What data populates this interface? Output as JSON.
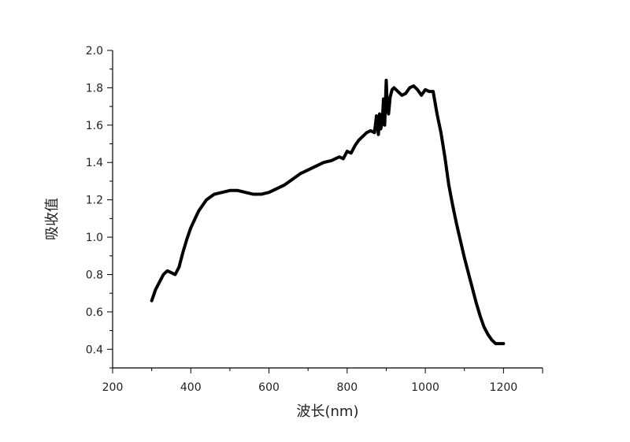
{
  "chart_data": {
    "type": "line",
    "xlabel": "波长(nm)",
    "ylabel": "吸收值",
    "xlim": [
      200,
      1300
    ],
    "ylim": [
      0.3,
      2.0
    ],
    "xticks": [
      200,
      400,
      600,
      800,
      1000,
      1200
    ],
    "yticks": [
      0.4,
      0.6,
      0.8,
      1.0,
      1.2,
      1.4,
      1.6,
      1.8,
      2.0
    ],
    "xtick_labels": [
      "200",
      "400",
      "600",
      "800",
      "1000",
      "1200"
    ],
    "ytick_labels": [
      "0.4",
      "0.6",
      "0.8",
      "1.0",
      "1.2",
      "1.4",
      "1.6",
      "1.8",
      "2.0"
    ],
    "grid": false,
    "line_color": "#000000",
    "series": [
      {
        "x": [
          300,
          310,
          320,
          330,
          340,
          350,
          360,
          370,
          380,
          390,
          400,
          420,
          440,
          460,
          480,
          500,
          520,
          540,
          560,
          580,
          600,
          620,
          640,
          660,
          680,
          700,
          720,
          740,
          760,
          770,
          780,
          790,
          800,
          810,
          820,
          830,
          840,
          850,
          860,
          870,
          875,
          880,
          883,
          886,
          890,
          893,
          896,
          900,
          903,
          906,
          910,
          915,
          920,
          930,
          940,
          950,
          960,
          970,
          980,
          990,
          1000,
          1010,
          1020,
          1030,
          1040,
          1050,
          1060,
          1070,
          1080,
          1090,
          1100,
          1110,
          1120,
          1130,
          1140,
          1150,
          1160,
          1170,
          1180,
          1190,
          1200
        ],
        "y": [
          0.66,
          0.72,
          0.76,
          0.8,
          0.82,
          0.81,
          0.8,
          0.84,
          0.92,
          0.99,
          1.05,
          1.14,
          1.2,
          1.23,
          1.24,
          1.25,
          1.25,
          1.24,
          1.23,
          1.23,
          1.24,
          1.26,
          1.28,
          1.31,
          1.34,
          1.36,
          1.38,
          1.4,
          1.41,
          1.42,
          1.43,
          1.42,
          1.46,
          1.45,
          1.49,
          1.52,
          1.54,
          1.56,
          1.57,
          1.56,
          1.65,
          1.55,
          1.66,
          1.58,
          1.62,
          1.74,
          1.6,
          1.84,
          1.68,
          1.66,
          1.75,
          1.79,
          1.8,
          1.78,
          1.76,
          1.77,
          1.8,
          1.81,
          1.79,
          1.76,
          1.79,
          1.78,
          1.78,
          1.66,
          1.56,
          1.43,
          1.28,
          1.17,
          1.07,
          0.98,
          0.89,
          0.81,
          0.73,
          0.65,
          0.58,
          0.52,
          0.48,
          0.45,
          0.43,
          0.43,
          0.43
        ]
      }
    ]
  }
}
